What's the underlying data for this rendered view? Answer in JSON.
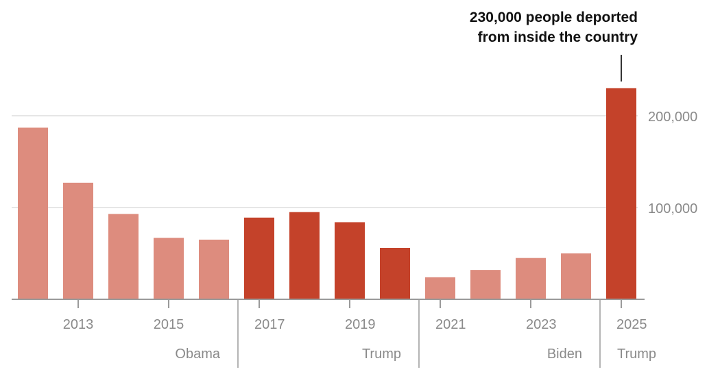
{
  "chart_data": {
    "type": "bar",
    "title": "",
    "xlabel": "",
    "ylabel": "",
    "categories": [
      "2012",
      "2013",
      "2014",
      "2015",
      "2016",
      "2017",
      "2018",
      "2019",
      "2020",
      "2021",
      "2022",
      "2023",
      "2024",
      "2025"
    ],
    "values": [
      187000,
      127000,
      93000,
      67000,
      65000,
      89000,
      95000,
      84000,
      56000,
      24000,
      32000,
      45000,
      50000,
      230000
    ],
    "administration": [
      "Obama",
      "Obama",
      "Obama",
      "Obama",
      "Obama",
      "Trump",
      "Trump",
      "Trump",
      "Trump",
      "Biden",
      "Biden",
      "Biden",
      "Biden",
      "Trump"
    ],
    "ylim": [
      0,
      230000
    ],
    "yticks": [
      100000,
      200000
    ],
    "ytick_labels": [
      "100,000",
      "200,000"
    ],
    "xtick_labels": [
      "2013",
      "2015",
      "2017",
      "2019",
      "2021",
      "2023",
      "2025"
    ],
    "eras": [
      {
        "label": "Obama",
        "start": "2012",
        "end": "2016"
      },
      {
        "label": "Trump",
        "start": "2017",
        "end": "2020"
      },
      {
        "label": "Biden",
        "start": "2021",
        "end": "2024"
      },
      {
        "label": "Trump",
        "start": "2025",
        "end": "2025"
      }
    ],
    "annotation": {
      "year": "2025",
      "lines": [
        "230,000 people deported",
        "from inside the country"
      ]
    },
    "grid": true,
    "colors": {
      "trump": "#c4422a",
      "other": "#dd8c7e",
      "grid": "#e6e6e6",
      "axis": "#9a9a9a"
    }
  }
}
